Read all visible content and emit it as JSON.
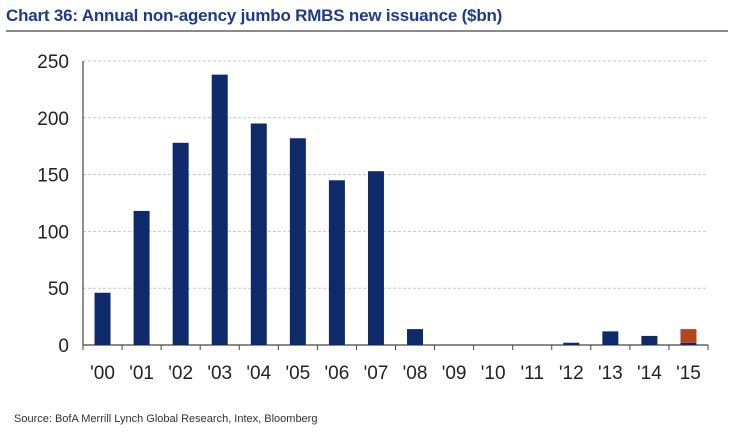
{
  "chart_data": {
    "type": "bar",
    "title": "Chart 36: Annual non-agency jumbo RMBS new issuance ($bn)",
    "categories": [
      "'00",
      "'01",
      "'02",
      "'03",
      "'04",
      "'05",
      "'06",
      "'07",
      "'08",
      "'09",
      "'10",
      "'11",
      "'12",
      "'13",
      "'14",
      "'15"
    ],
    "series": [
      {
        "values": [
          46,
          118,
          178,
          238,
          195,
          182,
          145,
          153,
          14,
          0,
          0,
          0,
          2,
          12,
          8,
          2
        ],
        "color": "#0f2a6b"
      },
      {
        "values": [
          0,
          0,
          0,
          0,
          0,
          0,
          0,
          0,
          0,
          0,
          0,
          0,
          0,
          0,
          0,
          12
        ],
        "color": "#b5461f"
      }
    ],
    "stacked": true,
    "ylim": [
      0,
      250
    ],
    "yticks": [
      0,
      50,
      100,
      150,
      200,
      250
    ],
    "grid": true,
    "xlabel": "",
    "ylabel": ""
  },
  "source": "Source: BofA Merrill Lynch Global Research, Intex, Bloomberg",
  "colors": {
    "title": "#1f3a8a",
    "grid": "#c8c8c8",
    "axis": "#444444"
  }
}
